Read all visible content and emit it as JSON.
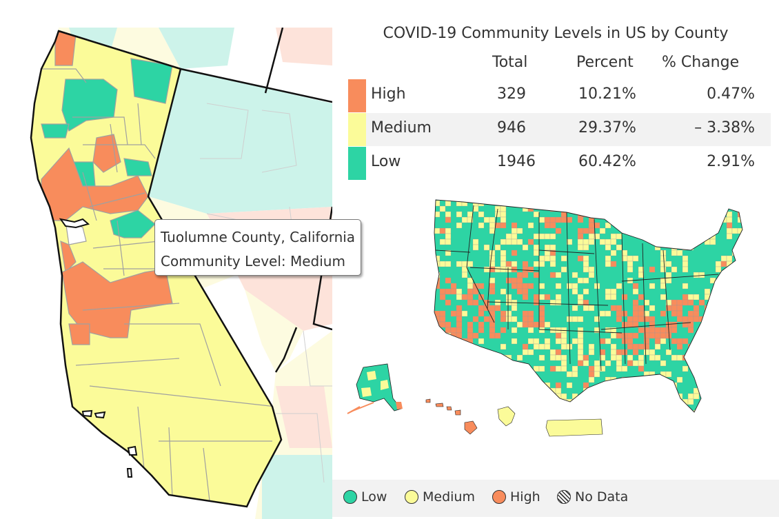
{
  "title": "COVID-19 Community Levels in US by County",
  "columns": {
    "total": "Total",
    "percent": "Percent",
    "change": "% Change"
  },
  "levels": [
    {
      "name": "High",
      "total": "329",
      "percent": "10.21%",
      "change": "0.47%",
      "color": "#f88c5c"
    },
    {
      "name": "Medium",
      "total": "946",
      "percent": "29.37%",
      "change": "– 3.38%",
      "color": "#fbfb99"
    },
    {
      "name": "Low",
      "total": "1946",
      "percent": "60.42%",
      "change": "2.91%",
      "color": "#2dd4a4"
    }
  ],
  "tooltip": {
    "county": "Tuolumne County, California",
    "level": "Community Level: Medium"
  },
  "legend": [
    {
      "label": "Low",
      "color": "#2dd4a4"
    },
    {
      "label": "Medium",
      "color": "#fbfb99"
    },
    {
      "label": "High",
      "color": "#f88c5c"
    },
    {
      "label": "No Data",
      "color": "hatch"
    }
  ]
}
